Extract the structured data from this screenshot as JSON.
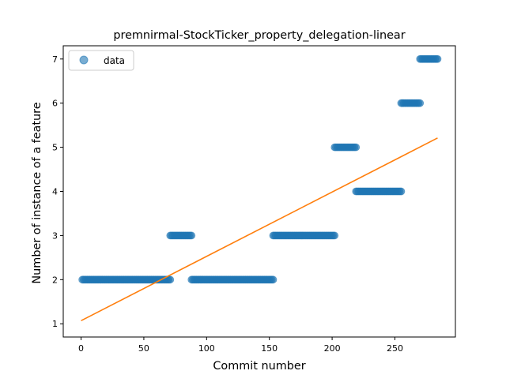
{
  "chart_data": {
    "type": "scatter",
    "title": "premnirmal-StockTicker_property_delegation-linear",
    "xlabel": "Commit number",
    "ylabel": "Number of instance of a feature",
    "xlim": [
      -14.2,
      298.2
    ],
    "ylim": [
      0.7,
      7.3
    ],
    "xticks": [
      0,
      50,
      100,
      150,
      200,
      250
    ],
    "yticks": [
      1,
      2,
      3,
      4,
      5,
      6,
      7
    ],
    "grid": false,
    "legend": {
      "placement": "upper-left",
      "entries": [
        "data"
      ]
    },
    "series": [
      {
        "name": "data",
        "kind": "scatter",
        "color": "#1f77b4",
        "segments": [
          {
            "x_start": 1,
            "x_end": 71,
            "y": 2
          },
          {
            "x_start": 71,
            "x_end": 88,
            "y": 3
          },
          {
            "x_start": 88,
            "x_end": 153,
            "y": 2
          },
          {
            "x_start": 153,
            "x_end": 202,
            "y": 3
          },
          {
            "x_start": 202,
            "x_end": 219,
            "y": 5
          },
          {
            "x_start": 219,
            "x_end": 255,
            "y": 4
          },
          {
            "x_start": 255,
            "x_end": 270,
            "y": 6
          },
          {
            "x_start": 270,
            "x_end": 284,
            "y": 7
          }
        ]
      },
      {
        "kind": "line",
        "color": "#ff7f0e",
        "x": [
          0,
          284
        ],
        "y": [
          1.07,
          5.21
        ]
      }
    ]
  }
}
